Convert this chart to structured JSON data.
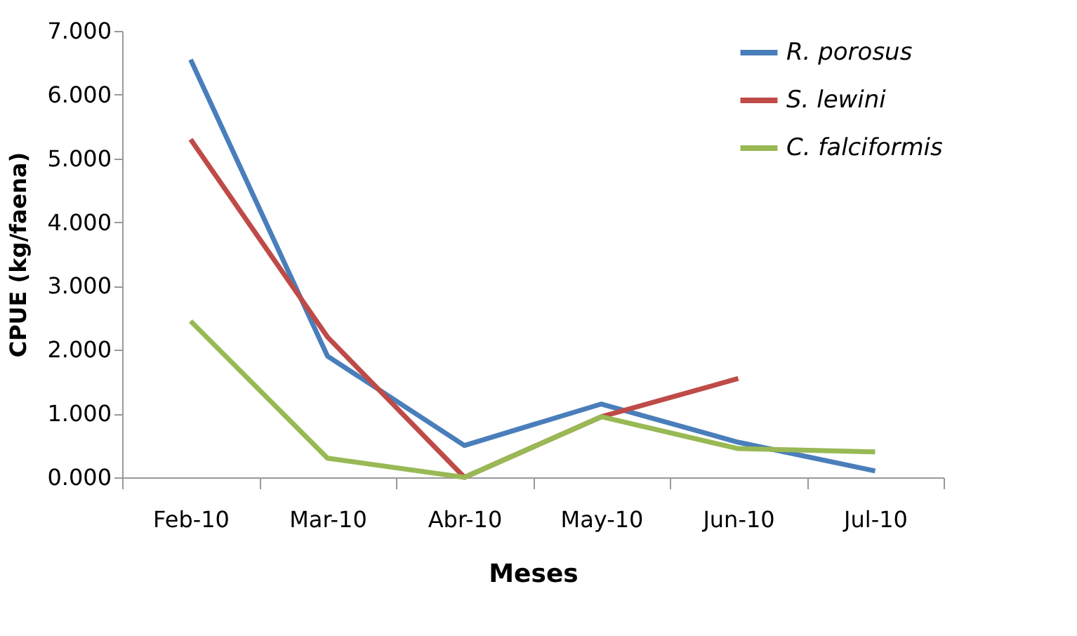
{
  "chart_data": {
    "type": "line",
    "xlabel": "Meses",
    "ylabel": "CPUE (kg/faena)",
    "categories": [
      "Feb-10",
      "Mar-10",
      "Abr-10",
      "May-10",
      "Jun-10",
      "Jul-10"
    ],
    "series": [
      {
        "name": "R. porosus",
        "color": "#4a7ebb",
        "values": [
          6.55,
          1.9,
          0.5,
          1.15,
          0.55,
          0.1
        ]
      },
      {
        "name": "S. lewini",
        "color": "#be4b48",
        "values": [
          5.3,
          2.2,
          0.0,
          0.95,
          1.55,
          null
        ]
      },
      {
        "name": "C. falciformis",
        "color": "#98b954",
        "values": [
          2.45,
          0.3,
          0.0,
          0.95,
          0.45,
          0.4
        ]
      }
    ],
    "ylim": [
      0,
      7
    ],
    "yticks": [
      {
        "value": 0,
        "label": "0.000"
      },
      {
        "value": 1,
        "label": "1.000"
      },
      {
        "value": 2,
        "label": "2.000"
      },
      {
        "value": 3,
        "label": "3.000"
      },
      {
        "value": 4,
        "label": "4.000"
      },
      {
        "value": 5,
        "label": "5.000"
      },
      {
        "value": 6,
        "label": "6.000"
      },
      {
        "value": 7,
        "label": "7.000"
      }
    ],
    "grid": false,
    "legend": "top right",
    "marker": "none",
    "line_style": "solid"
  }
}
